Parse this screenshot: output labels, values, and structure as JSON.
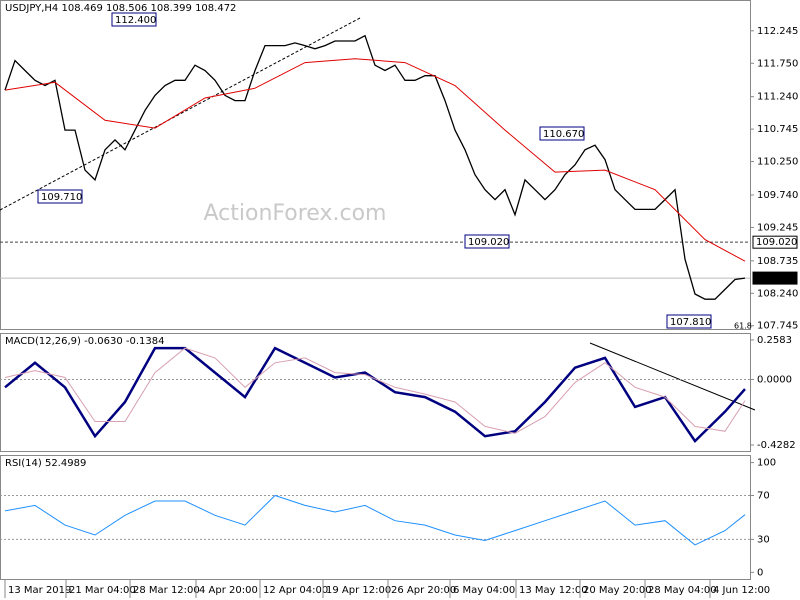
{
  "chart_data": [
    {
      "type": "line",
      "title": "USDJPY,H4  108.469 108.506 108.399 108.472",
      "xlim": [
        -0.5,
        74.5
      ],
      "ylim": [
        107.68,
        112.7
      ],
      "yticks": [
        112.245,
        {
          "value": 111.75,
          "label": "111.750"
        },
        {
          "value": 111.24,
          "label": "111.240"
        },
        110.745,
        {
          "value": 110.25,
          "label": "110.250"
        },
        {
          "value": 109.74,
          "label": "109.740"
        },
        109.245,
        108.735,
        {
          "value": 108.24,
          "label": "108.240"
        },
        107.745
      ],
      "series": [
        {
          "color": "#000000",
          "values": [
            111.34,
            111.79,
            111.64,
            111.49,
            111.41,
            111.49,
            110.73,
            110.73,
            110.12,
            109.97,
            110.43,
            110.58,
            110.43,
            110.73,
            111.03,
            111.26,
            111.41,
            111.49,
            111.49,
            111.72,
            111.64,
            111.49,
            111.26,
            111.18,
            111.18,
            111.64,
            112.02,
            112.02,
            112.02,
            112.06,
            112.02,
            111.97,
            112.02,
            112.09,
            112.09,
            112.09,
            112.17,
            111.72,
            111.64,
            111.72,
            111.49,
            111.49,
            111.56,
            111.56,
            111.18,
            110.73,
            110.43,
            110.05,
            109.82,
            109.67,
            109.82,
            109.44,
            109.97,
            109.82,
            109.67,
            109.82,
            110.05,
            110.2,
            110.43,
            110.5,
            110.28,
            109.82,
            109.67,
            109.52,
            109.52,
            109.52,
            109.67,
            109.82,
            108.76,
            108.23,
            108.15,
            108.15,
            108.3,
            108.45,
            108.472
          ]
        },
        {
          "color": "#e00000",
          "x": [
            0,
            5,
            10,
            15,
            20,
            25,
            30,
            35,
            40,
            45,
            50,
            55,
            60,
            65,
            70,
            74
          ],
          "values": [
            111.34,
            111.46,
            110.88,
            110.76,
            111.22,
            111.37,
            111.76,
            111.82,
            111.76,
            111.41,
            110.73,
            110.09,
            110.12,
            109.82,
            109.06,
            108.73
          ]
        }
      ],
      "hlines": [
        {
          "value": 109.02,
          "label": "109.020",
          "style": "dashed"
        },
        {
          "value": 108.472,
          "label": "108.472",
          "style": "solid"
        }
      ],
      "annotations": [
        "112.400",
        "109.710",
        "109.020",
        "110.670",
        "107.810",
        "61.8"
      ],
      "watermark": "ActionForex.com"
    },
    {
      "type": "line",
      "title": "MACD(12,26,9) -0.0630 -0.1384",
      "xlim": [
        -0.5,
        74.5
      ],
      "ylim": [
        -0.474,
        0.297
      ],
      "yticks": [
        0.2583,
        {
          "value": 0,
          "label": "0.0000"
        },
        -0.4282
      ],
      "levels": [
        0
      ],
      "series": [
        {
          "color": "#000080",
          "x": [
            0,
            3,
            6,
            9,
            12,
            15,
            18,
            21,
            24,
            27,
            30,
            33,
            36,
            39,
            42,
            45,
            48,
            51,
            54,
            57,
            60,
            63,
            66,
            69,
            72,
            74
          ],
          "values": [
            -0.051,
            0.109,
            -0.051,
            -0.371,
            -0.147,
            0.205,
            0.205,
            0.045,
            -0.115,
            0.205,
            0.109,
            0.013,
            0.045,
            -0.083,
            -0.115,
            -0.211,
            -0.371,
            -0.339,
            -0.147,
            0.077,
            0.141,
            -0.179,
            -0.115,
            -0.403,
            -0.211,
            -0.063
          ]
        },
        {
          "color": "#d8a0b0",
          "x": [
            0,
            3,
            6,
            9,
            12,
            15,
            18,
            21,
            24,
            27,
            30,
            33,
            36,
            39,
            42,
            45,
            48,
            51,
            54,
            57,
            60,
            63,
            66,
            69,
            72,
            74
          ],
          "values": [
            0.013,
            0.058,
            0.013,
            -0.275,
            -0.275,
            0.045,
            0.205,
            0.141,
            -0.051,
            0.109,
            0.141,
            0.045,
            0.032,
            -0.051,
            -0.096,
            -0.147,
            -0.307,
            -0.352,
            -0.243,
            -0.019,
            0.109,
            -0.051,
            -0.115,
            -0.307,
            -0.339,
            -0.1384
          ]
        }
      ]
    },
    {
      "type": "line",
      "title": "RSI(14) 52.4989",
      "xlim": [
        -0.5,
        74.5
      ],
      "ylim": [
        -7,
        106
      ],
      "yticks": [
        100,
        70,
        30,
        0
      ],
      "levels": [
        70,
        30
      ],
      "series": [
        {
          "color": "#1e90ff",
          "x": [
            0,
            3,
            6,
            9,
            12,
            15,
            18,
            21,
            24,
            27,
            30,
            33,
            36,
            39,
            42,
            45,
            48,
            51,
            54,
            57,
            60,
            63,
            66,
            69,
            72,
            74
          ],
          "values": [
            56,
            61,
            43,
            34,
            52,
            65,
            65,
            52,
            43,
            70,
            61,
            55,
            61,
            47,
            43,
            34,
            29,
            38,
            47,
            56,
            65,
            43,
            47,
            25,
            38,
            52.4989
          ]
        }
      ],
      "xticks": [
        {
          "value": 0,
          "label": "13 Mar 2019"
        },
        {
          "value": 6.1,
          "label": "21 Mar 04:00"
        },
        {
          "value": 12.5,
          "label": "28 Mar 12:00"
        },
        {
          "value": 19.1,
          "label": "4 Apr 20:00"
        },
        {
          "value": 25.5,
          "label": "12 Apr 04:00"
        },
        {
          "value": 31.8,
          "label": "19 Apr 12:00"
        },
        {
          "value": 38.3,
          "label": "26 Apr 20:00"
        },
        {
          "value": 44.5,
          "label": "6 May 04:00"
        },
        {
          "value": 51.1,
          "label": "13 May 12:00"
        },
        {
          "value": 57.5,
          "label": "20 May 20:00"
        },
        {
          "value": 64,
          "label": "28 May 04:00"
        },
        {
          "value": 70.5,
          "label": "4 Jun 12:00"
        }
      ]
    }
  ]
}
